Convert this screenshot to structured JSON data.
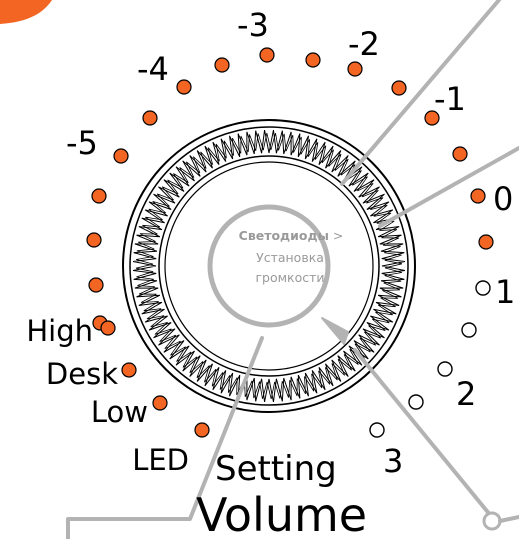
{
  "dial": {
    "center_label_bold": "Светодиоды",
    "center_label_sep": " >",
    "center_label_line2": "Установка",
    "center_label_line3": "громкости"
  },
  "scale": {
    "marks": [
      {
        "label": "-5",
        "lit": true
      },
      {
        "label": "-4",
        "lit": true
      },
      {
        "label": "-3",
        "lit": true
      },
      {
        "label": "-2",
        "lit": true
      },
      {
        "label": "-1",
        "lit": true
      },
      {
        "label": "0",
        "lit": true
      },
      {
        "label": "1",
        "lit": false
      },
      {
        "label": "2",
        "lit": false
      },
      {
        "label": "3",
        "lit": false
      }
    ]
  },
  "modes": [
    "High",
    "Desk",
    "Low",
    "LED"
  ],
  "caption": {
    "setting": "Setting",
    "volume": "Volume"
  },
  "colors": {
    "led_on": "#f26522",
    "led_off": "#ffffff",
    "callout": "#b3b3b3",
    "accent": "#f26522"
  }
}
